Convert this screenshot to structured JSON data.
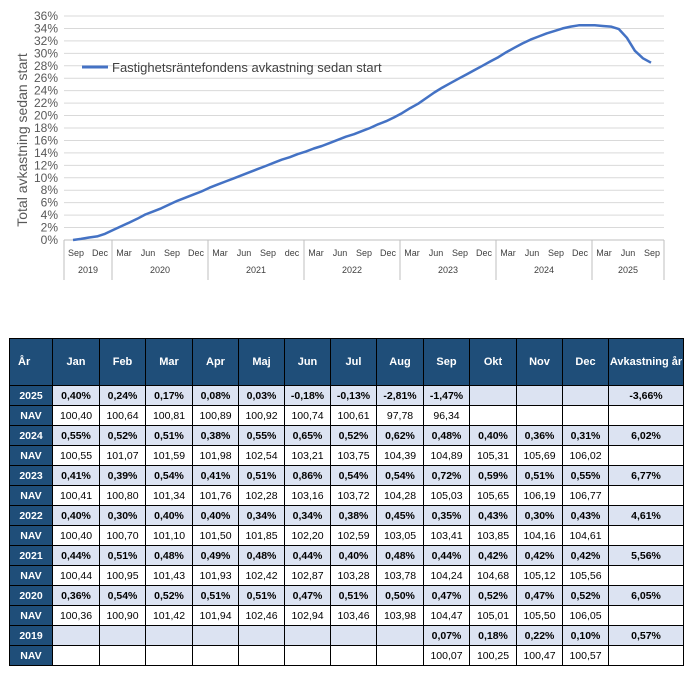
{
  "chart_data": {
    "type": "line",
    "title": "",
    "ylabel": "Total avkastning sedan start",
    "ylim": [
      0,
      36
    ],
    "y_ticks": [
      "0%",
      "2%",
      "4%",
      "6%",
      "8%",
      "10%",
      "12%",
      "14%",
      "16%",
      "18%",
      "20%",
      "22%",
      "24%",
      "26%",
      "28%",
      "30%",
      "32%",
      "34%",
      "36%"
    ],
    "x_ticks": [
      "Sep",
      "Dec",
      "Mar",
      "Jun",
      "Sep",
      "Dec",
      "Mar",
      "Jun",
      "Sep",
      "dec",
      "Mar",
      "Jun",
      "Sep",
      "Dec",
      "Mar",
      "Jun",
      "Sep",
      "Dec",
      "Mar",
      "Jun",
      "Sep",
      "Dec",
      "Mar",
      "Jun",
      "Sep"
    ],
    "year_labels": [
      "2019",
      "2020",
      "2021",
      "2022",
      "2023",
      "2024",
      "2025"
    ],
    "series": [
      {
        "name": "Fastighetsräntefondens avkastning sedan start",
        "color": "#4472c4",
        "x": [
          0,
          1,
          2,
          3,
          4,
          5,
          6,
          7,
          8,
          9,
          10,
          11,
          12,
          13,
          14,
          15,
          16,
          17,
          18,
          19,
          20,
          21,
          22,
          23,
          24,
          25,
          26,
          27,
          28,
          29,
          30,
          31,
          32,
          33,
          34,
          35,
          36,
          37,
          38,
          39,
          40,
          41,
          42,
          43,
          44,
          45,
          46,
          47,
          48,
          49,
          50,
          51,
          52,
          53,
          54,
          55,
          56,
          57,
          58,
          59,
          60,
          61,
          62,
          63,
          64,
          65,
          66,
          67,
          68,
          69,
          70,
          71,
          72
        ],
        "values": [
          0.0,
          0.18,
          0.4,
          0.58,
          1.0,
          1.6,
          2.2,
          2.8,
          3.4,
          4.1,
          4.6,
          5.1,
          5.7,
          6.3,
          6.8,
          7.3,
          7.8,
          8.4,
          8.9,
          9.4,
          9.9,
          10.4,
          10.9,
          11.4,
          11.9,
          12.4,
          12.9,
          13.3,
          13.8,
          14.2,
          14.7,
          15.1,
          15.6,
          16.1,
          16.6,
          17.0,
          17.5,
          18.0,
          18.6,
          19.1,
          19.7,
          20.4,
          21.2,
          21.9,
          22.8,
          23.7,
          24.5,
          25.2,
          25.9,
          26.6,
          27.3,
          28.0,
          28.7,
          29.4,
          30.2,
          30.9,
          31.6,
          32.2,
          32.7,
          33.2,
          33.6,
          34.0,
          34.3,
          34.5,
          34.5,
          34.5,
          34.4,
          34.3,
          33.9,
          32.5,
          30.4,
          29.2,
          28.5
        ]
      }
    ]
  },
  "table": {
    "headers": [
      "År",
      "Jan",
      "Feb",
      "Mar",
      "Apr",
      "Maj",
      "Jun",
      "Jul",
      "Aug",
      "Sep",
      "Okt",
      "Nov",
      "Dec",
      "Avkastning år"
    ],
    "rows": [
      {
        "type": "pct",
        "label": "2025",
        "cells": [
          "0,40%",
          "0,24%",
          "0,17%",
          "0,08%",
          "0,03%",
          "-0,18%",
          "-0,13%",
          "-2,81%",
          "-1,47%",
          "",
          "",
          "",
          "-3,66%"
        ]
      },
      {
        "type": "nav",
        "label": "NAV",
        "cells": [
          "100,40",
          "100,64",
          "100,81",
          "100,89",
          "100,92",
          "100,74",
          "100,61",
          "97,78",
          "96,34",
          "",
          "",
          "",
          ""
        ]
      },
      {
        "type": "pct",
        "label": "2024",
        "cells": [
          "0,55%",
          "0,52%",
          "0,51%",
          "0,38%",
          "0,55%",
          "0,65%",
          "0,52%",
          "0,62%",
          "0,48%",
          "0,40%",
          "0,36%",
          "0,31%",
          "6,02%"
        ]
      },
      {
        "type": "nav",
        "label": "NAV",
        "cells": [
          "100,55",
          "101,07",
          "101,59",
          "101,98",
          "102,54",
          "103,21",
          "103,75",
          "104,39",
          "104,89",
          "105,31",
          "105,69",
          "106,02",
          ""
        ]
      },
      {
        "type": "pct",
        "label": "2023",
        "cells": [
          "0,41%",
          "0,39%",
          "0,54%",
          "0,41%",
          "0,51%",
          "0,86%",
          "0,54%",
          "0,54%",
          "0,72%",
          "0,59%",
          "0,51%",
          "0,55%",
          "6,77%"
        ]
      },
      {
        "type": "nav",
        "label": "NAV",
        "cells": [
          "100,41",
          "100,80",
          "101,34",
          "101,76",
          "102,28",
          "103,16",
          "103,72",
          "104,28",
          "105,03",
          "105,65",
          "106,19",
          "106,77",
          ""
        ]
      },
      {
        "type": "pct",
        "label": "2022",
        "cells": [
          "0,40%",
          "0,30%",
          "0,40%",
          "0,40%",
          "0,34%",
          "0,34%",
          "0,38%",
          "0,45%",
          "0,35%",
          "0,43%",
          "0,30%",
          "0,43%",
          "4,61%"
        ]
      },
      {
        "type": "nav",
        "label": "NAV",
        "cells": [
          "100,40",
          "100,70",
          "101,10",
          "101,50",
          "101,85",
          "102,20",
          "102,59",
          "103,05",
          "103,41",
          "103,85",
          "104,16",
          "104,61",
          ""
        ]
      },
      {
        "type": "pct",
        "label": "2021",
        "cells": [
          "0,44%",
          "0,51%",
          "0,48%",
          "0,49%",
          "0,48%",
          "0,44%",
          "0,40%",
          "0,48%",
          "0,44%",
          "0,42%",
          "0,42%",
          "0,42%",
          "5,56%"
        ]
      },
      {
        "type": "nav",
        "label": "NAV",
        "cells": [
          "100,44",
          "100,95",
          "101,43",
          "101,93",
          "102,42",
          "102,87",
          "103,28",
          "103,78",
          "104,24",
          "104,68",
          "105,12",
          "105,56",
          ""
        ]
      },
      {
        "type": "pct",
        "label": "2020",
        "cells": [
          "0,36%",
          "0,54%",
          "0,52%",
          "0,51%",
          "0,51%",
          "0,47%",
          "0,51%",
          "0,50%",
          "0,47%",
          "0,52%",
          "0,47%",
          "0,52%",
          "6,05%"
        ]
      },
      {
        "type": "nav",
        "label": "NAV",
        "cells": [
          "100,36",
          "100,90",
          "101,42",
          "101,94",
          "102,46",
          "102,94",
          "103,46",
          "103,98",
          "104,47",
          "105,01",
          "105,50",
          "106,05",
          ""
        ]
      },
      {
        "type": "pct",
        "label": "2019",
        "cells": [
          "",
          "",
          "",
          "",
          "",
          "",
          "",
          "",
          "0,07%",
          "0,18%",
          "0,22%",
          "0,10%",
          "0,57%"
        ]
      },
      {
        "type": "nav",
        "label": "NAV",
        "cells": [
          "",
          "",
          "",
          "",
          "",
          "",
          "",
          "",
          "100,07",
          "100,25",
          "100,47",
          "100,57",
          ""
        ]
      }
    ]
  }
}
